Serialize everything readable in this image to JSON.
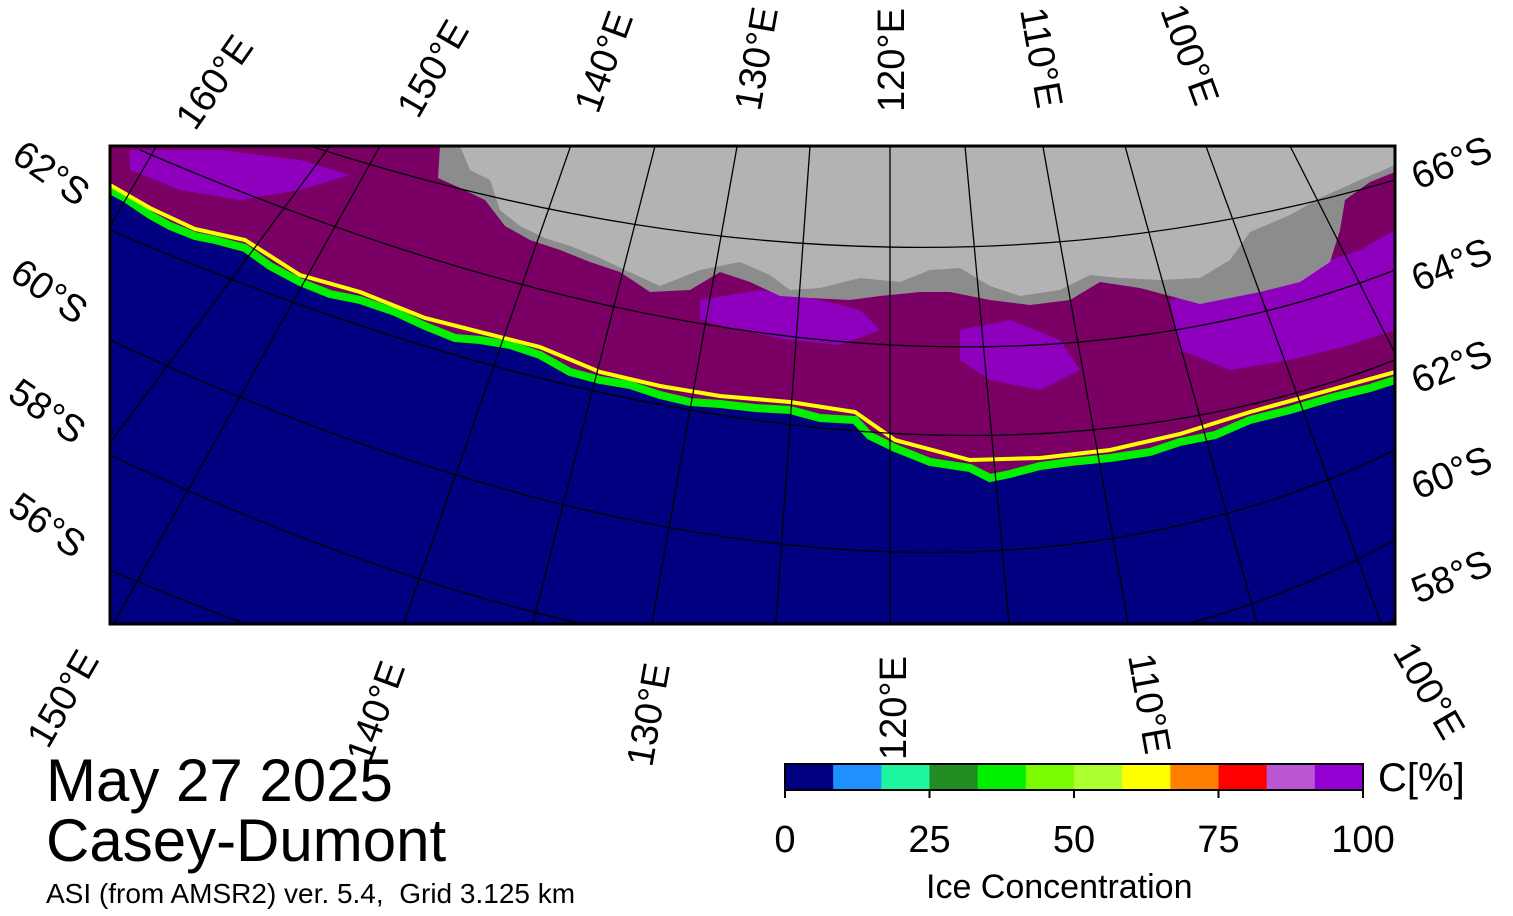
{
  "map": {
    "date": "May 27 2025",
    "region": "Casey-Dumont",
    "credit": "ASI (from AMSR2) ver. 5.4,  Grid 3.125 km",
    "colors": {
      "open_water": "#000080",
      "ice_main": "#7a0066",
      "ice_high": "#9400d3",
      "land": "#b3b3b3",
      "land_dark": "#8c8c8c"
    },
    "top_lon_labels": [
      "160°E",
      "150°E",
      "140°E",
      "130°E",
      "120°E",
      "110°E",
      "100°E"
    ],
    "bottom_lon_labels": [
      "150°E",
      "140°E",
      "130°E",
      "120°E",
      "110°E",
      "100°E"
    ],
    "left_lat_labels": [
      "62°S",
      "60°S",
      "58°S",
      "56°S"
    ],
    "right_lat_labels": [
      "66°S",
      "64°S",
      "62°S",
      "60°S",
      "58°S"
    ]
  },
  "colorbar": {
    "title": "Ice Concentration",
    "unit": "C[%]",
    "ticks": [
      "0",
      "25",
      "50",
      "75",
      "100"
    ],
    "colors": [
      "#000080",
      "#1e90ff",
      "#1ef5a0",
      "#228b22",
      "#00f000",
      "#7cfc00",
      "#adff2f",
      "#ffff00",
      "#ff7f00",
      "#ff0000",
      "#ba55d3",
      "#9400d3"
    ]
  }
}
